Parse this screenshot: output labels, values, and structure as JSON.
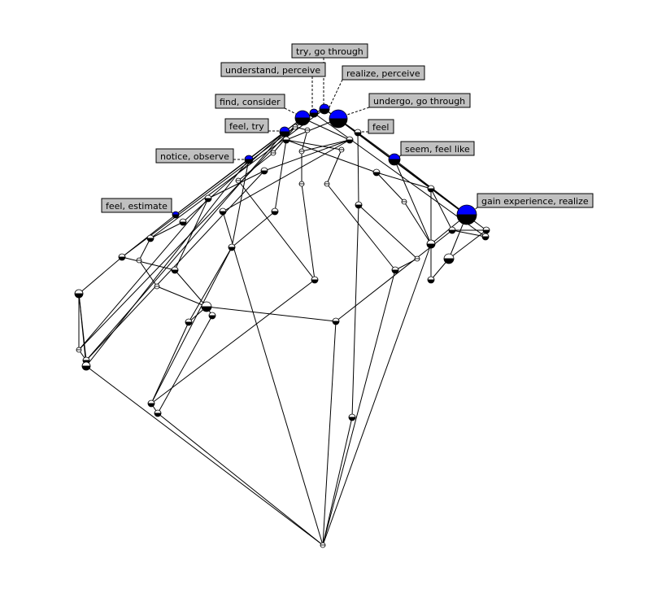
{
  "diagram": {
    "type": "concept-lattice",
    "colors": {
      "concept_fill": "#0000ff",
      "node_top": "#ffffff",
      "node_bottom": "#000000",
      "label_bg": "#c0c0c0",
      "edge": "#000000"
    },
    "labels": [
      {
        "id": "try-go-through",
        "text": "try, go through"
      },
      {
        "id": "understand-perceive",
        "text": "understand, perceive"
      },
      {
        "id": "realize-perceive",
        "text": "realize, perceive"
      },
      {
        "id": "find-consider",
        "text": "find, consider"
      },
      {
        "id": "undergo-go-through",
        "text": "undergo, go through"
      },
      {
        "id": "feel-try",
        "text": "feel, try"
      },
      {
        "id": "feel",
        "text": "feel"
      },
      {
        "id": "seem-feel-like",
        "text": "seem, feel like"
      },
      {
        "id": "notice-observe",
        "text": "notice, observe"
      },
      {
        "id": "feel-estimate",
        "text": "feel, estimate"
      },
      {
        "id": "gain-experience-realize",
        "text": "gain experience, realize"
      }
    ]
  }
}
